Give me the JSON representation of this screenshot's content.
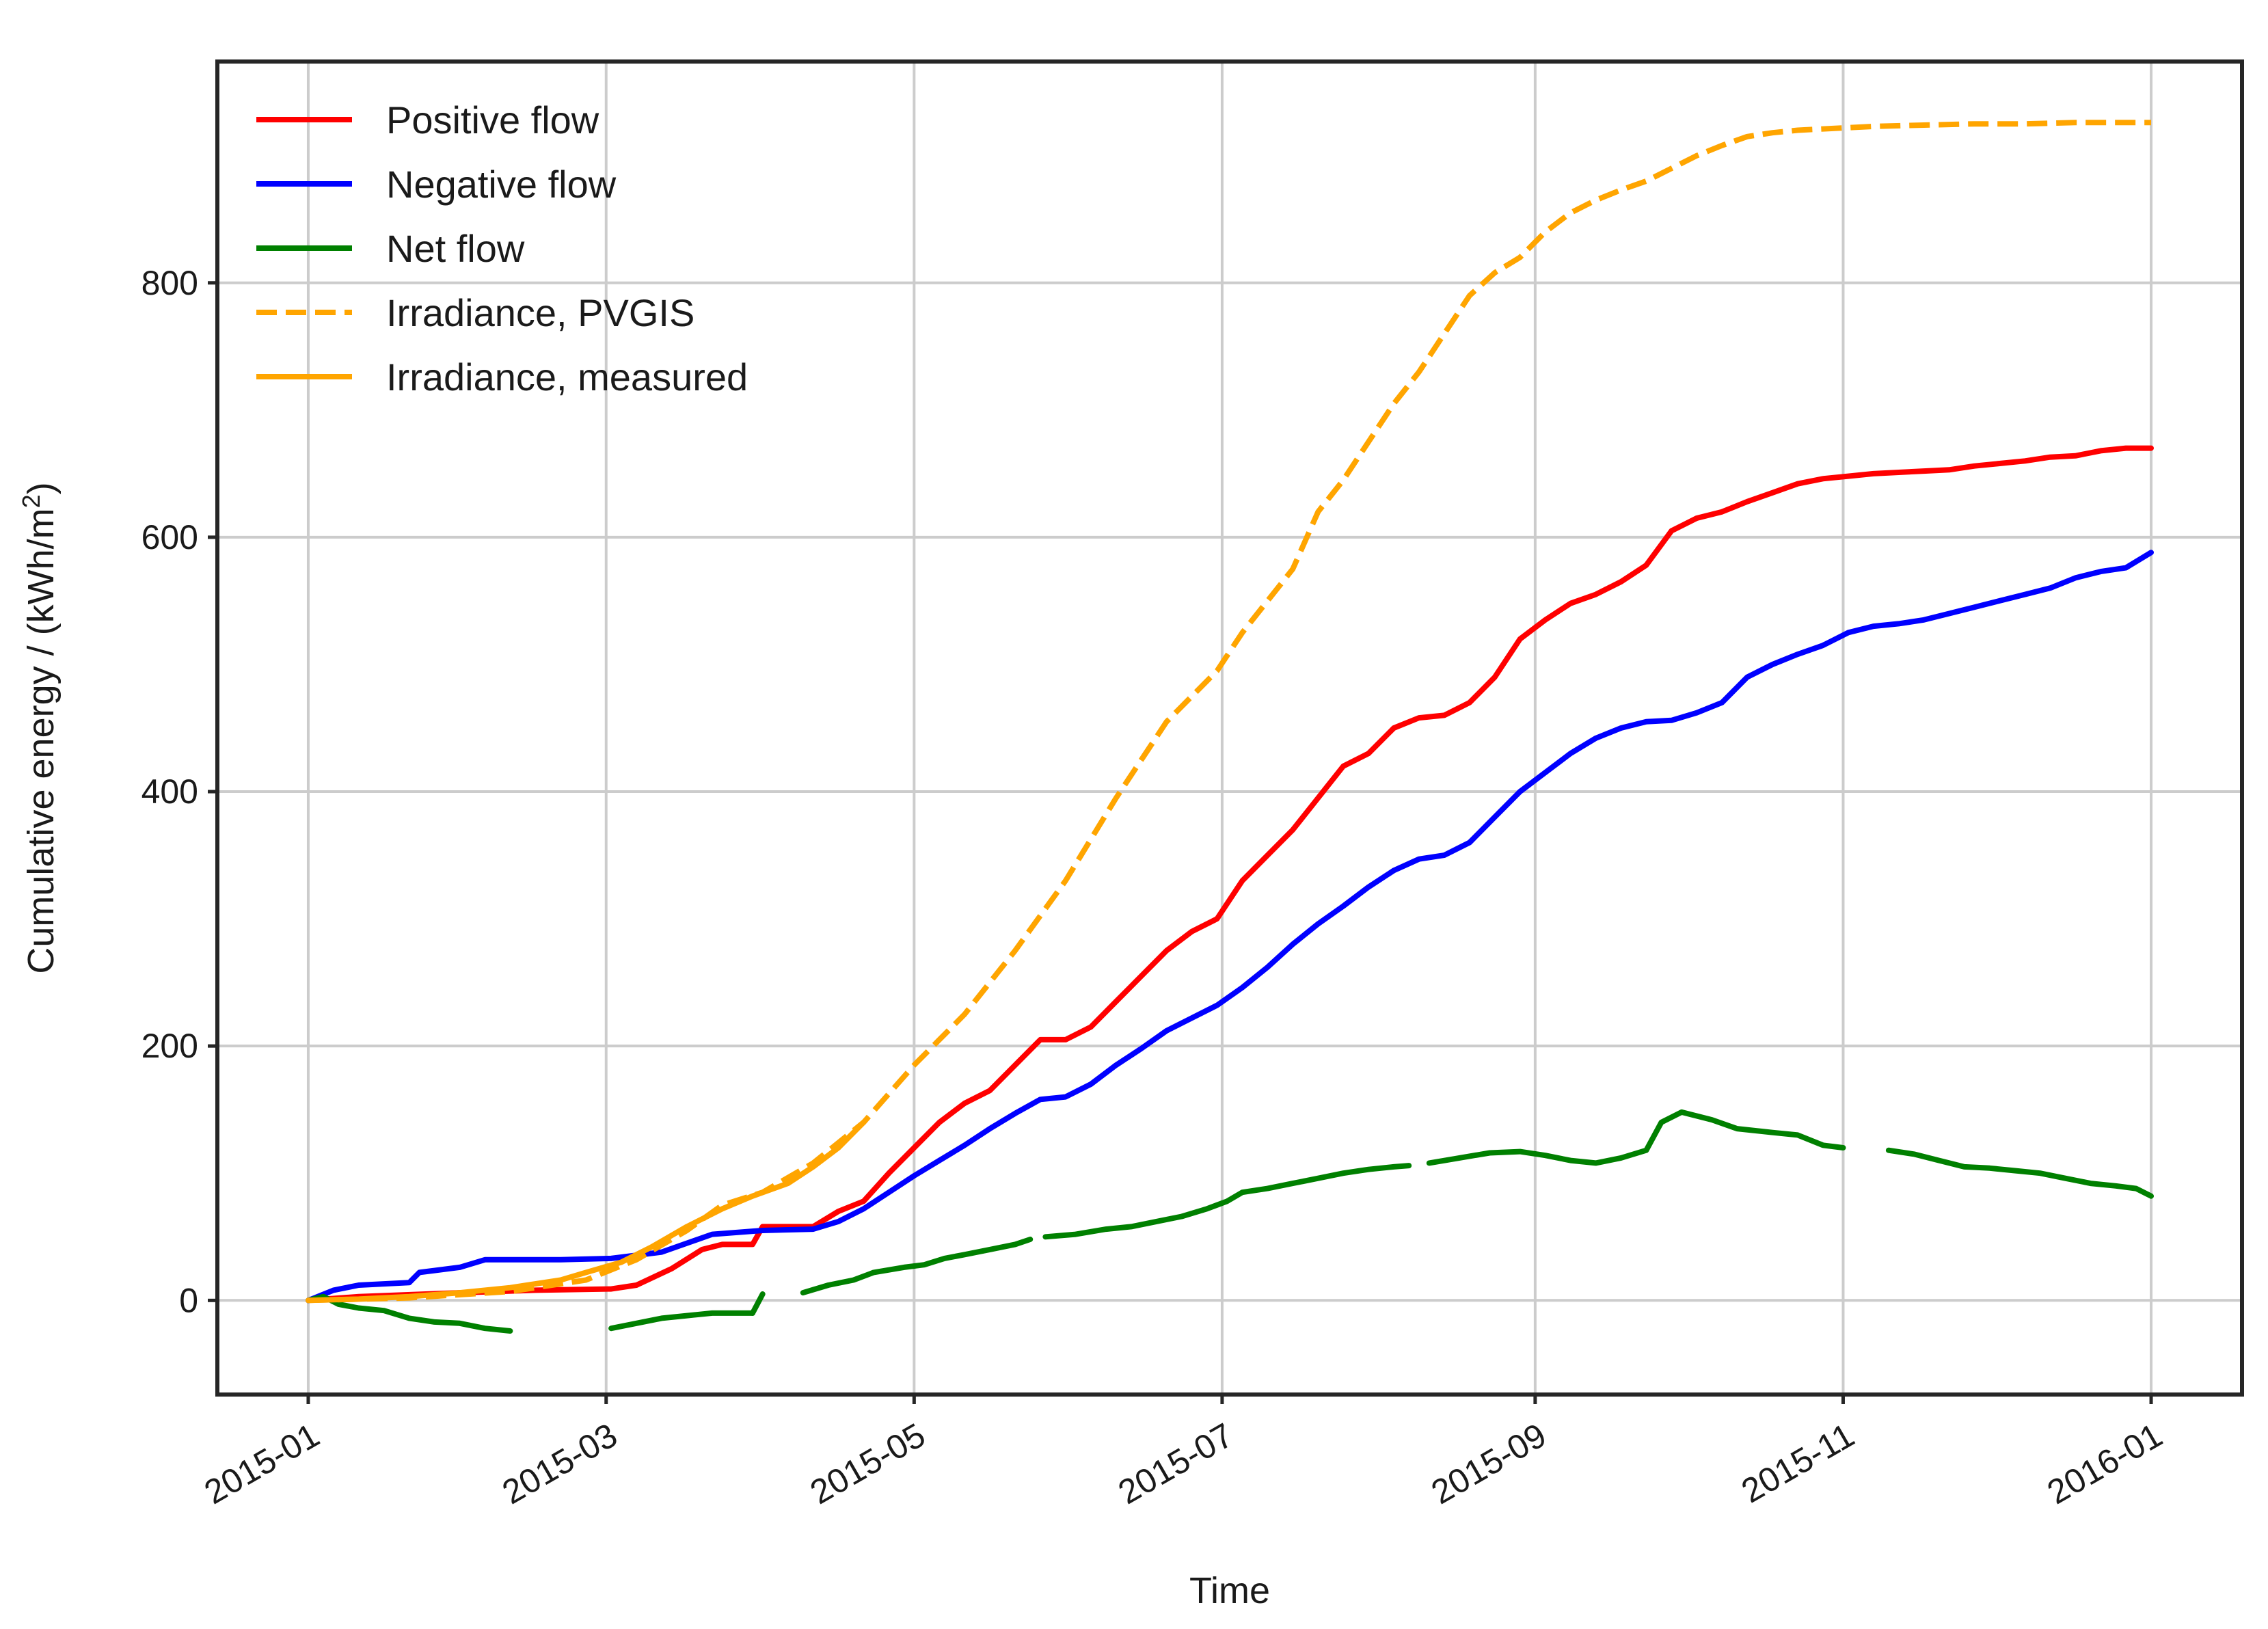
{
  "chart_data": {
    "type": "line",
    "title": "",
    "xlabel": "Time",
    "ylabel": "Cumulative energy / (kWh/m",
    "ylabel_superscript": "2",
    "ylabel_suffix": ")",
    "xlim_days": [
      -18,
      383
    ],
    "ylim": [
      -74,
      974
    ],
    "x_ticks": [
      {
        "label": "2015-01",
        "day": 0
      },
      {
        "label": "2015-03",
        "day": 59
      },
      {
        "label": "2015-05",
        "day": 120
      },
      {
        "label": "2015-07",
        "day": 181
      },
      {
        "label": "2015-09",
        "day": 243
      },
      {
        "label": "2015-11",
        "day": 304
      },
      {
        "label": "2016-01",
        "day": 365
      }
    ],
    "y_ticks": [
      0,
      200,
      400,
      600,
      800
    ],
    "grid": true,
    "legend_position": "top-left",
    "series": [
      {
        "name": "Positive flow",
        "color": "#ff0000",
        "style": "solid",
        "points": [
          [
            0,
            0
          ],
          [
            10,
            3
          ],
          [
            30,
            6
          ],
          [
            45,
            8
          ],
          [
            60,
            9
          ],
          [
            65,
            12
          ],
          [
            72,
            25
          ],
          [
            78,
            40
          ],
          [
            82,
            44
          ],
          [
            88,
            44
          ],
          [
            90,
            58
          ],
          [
            100,
            58
          ],
          [
            105,
            70
          ],
          [
            110,
            78
          ],
          [
            115,
            100
          ],
          [
            120,
            120
          ],
          [
            125,
            140
          ],
          [
            130,
            155
          ],
          [
            135,
            165
          ],
          [
            140,
            185
          ],
          [
            145,
            205
          ],
          [
            150,
            205
          ],
          [
            155,
            215
          ],
          [
            160,
            235
          ],
          [
            165,
            255
          ],
          [
            170,
            275
          ],
          [
            175,
            290
          ],
          [
            180,
            300
          ],
          [
            185,
            330
          ],
          [
            190,
            350
          ],
          [
            195,
            370
          ],
          [
            200,
            395
          ],
          [
            205,
            420
          ],
          [
            210,
            430
          ],
          [
            215,
            450
          ],
          [
            220,
            458
          ],
          [
            225,
            460
          ],
          [
            230,
            470
          ],
          [
            235,
            490
          ],
          [
            240,
            520
          ],
          [
            245,
            535
          ],
          [
            250,
            548
          ],
          [
            255,
            555
          ],
          [
            260,
            565
          ],
          [
            265,
            578
          ],
          [
            270,
            605
          ],
          [
            275,
            615
          ],
          [
            280,
            620
          ],
          [
            285,
            628
          ],
          [
            290,
            635
          ],
          [
            295,
            642
          ],
          [
            300,
            646
          ],
          [
            305,
            648
          ],
          [
            310,
            650
          ],
          [
            315,
            651
          ],
          [
            320,
            652
          ],
          [
            325,
            653
          ],
          [
            330,
            656
          ],
          [
            335,
            658
          ],
          [
            340,
            660
          ],
          [
            345,
            663
          ],
          [
            350,
            664
          ],
          [
            355,
            668
          ],
          [
            360,
            670
          ],
          [
            365,
            670
          ]
        ]
      },
      {
        "name": "Negative flow",
        "color": "#0000ff",
        "style": "solid",
        "points": [
          [
            0,
            0
          ],
          [
            5,
            8
          ],
          [
            10,
            12
          ],
          [
            20,
            14
          ],
          [
            22,
            22
          ],
          [
            30,
            26
          ],
          [
            35,
            32
          ],
          [
            50,
            32
          ],
          [
            60,
            33
          ],
          [
            70,
            38
          ],
          [
            80,
            52
          ],
          [
            90,
            55
          ],
          [
            100,
            56
          ],
          [
            105,
            62
          ],
          [
            110,
            72
          ],
          [
            115,
            85
          ],
          [
            120,
            98
          ],
          [
            125,
            110
          ],
          [
            130,
            122
          ],
          [
            135,
            135
          ],
          [
            140,
            147
          ],
          [
            145,
            158
          ],
          [
            150,
            160
          ],
          [
            155,
            170
          ],
          [
            160,
            185
          ],
          [
            165,
            198
          ],
          [
            170,
            212
          ],
          [
            175,
            222
          ],
          [
            180,
            232
          ],
          [
            185,
            246
          ],
          [
            190,
            262
          ],
          [
            195,
            280
          ],
          [
            200,
            296
          ],
          [
            205,
            310
          ],
          [
            210,
            325
          ],
          [
            215,
            338
          ],
          [
            220,
            347
          ],
          [
            225,
            350
          ],
          [
            230,
            360
          ],
          [
            235,
            380
          ],
          [
            240,
            400
          ],
          [
            245,
            415
          ],
          [
            250,
            430
          ],
          [
            255,
            442
          ],
          [
            260,
            450
          ],
          [
            265,
            455
          ],
          [
            270,
            456
          ],
          [
            275,
            462
          ],
          [
            280,
            470
          ],
          [
            285,
            490
          ],
          [
            290,
            500
          ],
          [
            295,
            508
          ],
          [
            300,
            515
          ],
          [
            305,
            525
          ],
          [
            310,
            530
          ],
          [
            315,
            532
          ],
          [
            320,
            535
          ],
          [
            325,
            540
          ],
          [
            330,
            545
          ],
          [
            335,
            550
          ],
          [
            340,
            555
          ],
          [
            345,
            560
          ],
          [
            350,
            568
          ],
          [
            355,
            573
          ],
          [
            360,
            576
          ],
          [
            365,
            588
          ]
        ]
      },
      {
        "name": "Net flow",
        "color": "#008000",
        "style": "solid",
        "segments": [
          [
            [
              0,
              0
            ],
            [
              3,
              3
            ],
            [
              6,
              -3
            ],
            [
              10,
              -6
            ],
            [
              15,
              -8
            ],
            [
              20,
              -14
            ],
            [
              25,
              -17
            ],
            [
              30,
              -18
            ],
            [
              35,
              -22
            ],
            [
              40,
              -24
            ]
          ],
          [
            [
              60,
              -22
            ],
            [
              65,
              -18
            ],
            [
              70,
              -14
            ],
            [
              75,
              -12
            ],
            [
              80,
              -10
            ],
            [
              85,
              -10
            ],
            [
              88,
              -10
            ]
          ],
          [
            [
              88,
              -10
            ],
            [
              90,
              5
            ]
          ],
          [
            [
              98,
              6
            ],
            [
              103,
              12
            ],
            [
              108,
              16
            ],
            [
              112,
              22
            ],
            [
              118,
              26
            ],
            [
              122,
              28
            ],
            [
              126,
              33
            ],
            [
              130,
              36
            ],
            [
              135,
              40
            ],
            [
              140,
              44
            ],
            [
              143,
              48
            ]
          ],
          [
            [
              146,
              50
            ],
            [
              152,
              52
            ],
            [
              158,
              56
            ],
            [
              163,
              58
            ],
            [
              168,
              62
            ],
            [
              173,
              66
            ],
            [
              178,
              72
            ],
            [
              182,
              78
            ],
            [
              185,
              85
            ],
            [
              190,
              88
            ],
            [
              195,
              92
            ],
            [
              200,
              96
            ],
            [
              205,
              100
            ],
            [
              210,
              103
            ],
            [
              215,
              105
            ],
            [
              218,
              106
            ]
          ],
          [
            [
              222,
              108
            ],
            [
              228,
              112
            ],
            [
              234,
              116
            ],
            [
              240,
              117
            ],
            [
              245,
              114
            ],
            [
              250,
              110
            ],
            [
              255,
              108
            ],
            [
              260,
              112
            ],
            [
              265,
              118
            ],
            [
              268,
              140
            ],
            [
              272,
              148
            ],
            [
              278,
              142
            ],
            [
              283,
              135
            ],
            [
              290,
              132
            ],
            [
              295,
              130
            ],
            [
              300,
              122
            ],
            [
              304,
              120
            ]
          ],
          [
            [
              313,
              118
            ],
            [
              318,
              115
            ],
            [
              323,
              110
            ],
            [
              328,
              105
            ],
            [
              333,
              104
            ],
            [
              338,
              102
            ],
            [
              343,
              100
            ],
            [
              348,
              96
            ],
            [
              353,
              92
            ],
            [
              358,
              90
            ],
            [
              362,
              88
            ],
            [
              365,
              82
            ]
          ]
        ]
      },
      {
        "name": "Irradiance, PVGIS",
        "color": "#ffa500",
        "style": "dashed",
        "points": [
          [
            0,
            0
          ],
          [
            20,
            2
          ],
          [
            40,
            7
          ],
          [
            55,
            16
          ],
          [
            65,
            32
          ],
          [
            75,
            55
          ],
          [
            82,
            75
          ],
          [
            90,
            85
          ],
          [
            100,
            108
          ],
          [
            110,
            140
          ],
          [
            120,
            185
          ],
          [
            130,
            225
          ],
          [
            140,
            275
          ],
          [
            150,
            330
          ],
          [
            160,
            395
          ],
          [
            170,
            455
          ],
          [
            180,
            495
          ],
          [
            185,
            525
          ],
          [
            190,
            550
          ],
          [
            195,
            575
          ],
          [
            200,
            620
          ],
          [
            205,
            645
          ],
          [
            210,
            675
          ],
          [
            215,
            705
          ],
          [
            220,
            730
          ],
          [
            225,
            760
          ],
          [
            230,
            790
          ],
          [
            235,
            808
          ],
          [
            240,
            820
          ],
          [
            245,
            840
          ],
          [
            250,
            855
          ],
          [
            255,
            865
          ],
          [
            260,
            873
          ],
          [
            265,
            880
          ],
          [
            270,
            890
          ],
          [
            275,
            900
          ],
          [
            280,
            908
          ],
          [
            285,
            915
          ],
          [
            290,
            918
          ],
          [
            295,
            920
          ],
          [
            300,
            921
          ],
          [
            305,
            922
          ],
          [
            310,
            923
          ],
          [
            320,
            924
          ],
          [
            330,
            925
          ],
          [
            340,
            925
          ],
          [
            350,
            926
          ],
          [
            365,
            926
          ]
        ]
      },
      {
        "name": "Irradiance, measured",
        "color": "#ffa500",
        "style": "solid",
        "points": [
          [
            0,
            0
          ],
          [
            10,
            1
          ],
          [
            20,
            3
          ],
          [
            30,
            6
          ],
          [
            40,
            10
          ],
          [
            50,
            16
          ],
          [
            55,
            22
          ],
          [
            62,
            30
          ],
          [
            68,
            42
          ],
          [
            75,
            58
          ],
          [
            82,
            72
          ],
          [
            88,
            82
          ],
          [
            95,
            92
          ],
          [
            100,
            105
          ],
          [
            105,
            120
          ],
          [
            110,
            140
          ]
        ]
      }
    ]
  }
}
